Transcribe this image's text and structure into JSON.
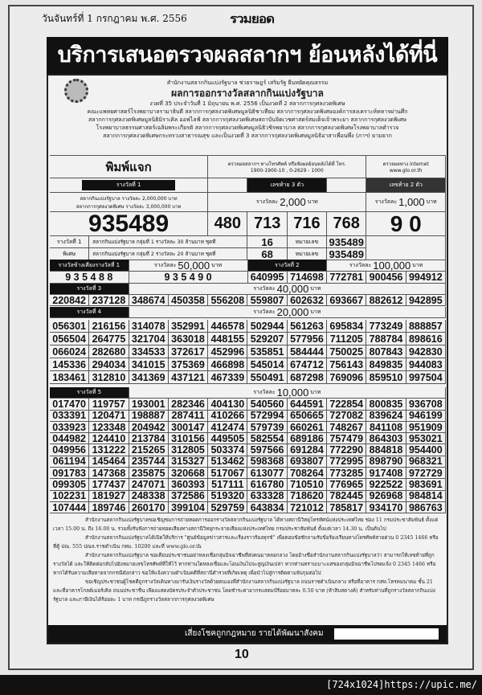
{
  "header": {
    "date": "วันจันทร์ที่ 1 กรกฎาคม พ.ศ. 2556",
    "logo": "รวมยอด",
    "banner": "บริการเสนอตรวจผลสลากฯ ย้อนหลังได้ที่นี่"
  },
  "intro": {
    "line1": "สำนักงานสลากกินแบ่งรัฐบาล ช่วยราษฎร์ เสริมรัฐ ยืนหยัดคุณธรรม",
    "title": "ผลการออกรางวัลสลากกินแบ่งรัฐบาล",
    "line3": "งวดที่ 35 ประจำวันที่ 1 มิถุนายน พ.ศ. 2556 เป็นงวดที่ 2 สลากการกุศลงวดพิเศษ",
    "line4": "คณะแพทยศาสตร์โรงพยาบาลรามาธิบดี สลากการกุศลงวดพิเศษมูลนิธิชาเทียม สลากการกุศลงวดพิเศษองค์การสงเคราะห์ทหารผ่านศึก",
    "line5": "สลากการกุศลงวดพิเศษมูลนิธิมิราเคิล ออฟไลฟ์ สลากการกุศลงวดพิเศษสถาบันจิตเวชศาสตร์สมเด็จเจ้าพระยา สลากการกุศลงวดพิเศษ",
    "line6": "โรงพยาบาลธรรมศาสตร์เฉลิมพระเกียรติ สลากการกุศลงวดพิเศษมูลนิธิวชิรพยาบาล สลากการกุศลงวดพิเศษโรงพยาบาลตำรวจ",
    "line7": "สลากการกุศลงวดพิเศษกระทรวงสาธารณสุข และเป็นงวดที่ 3 สลากการกุศลงวดพิเศษมูลนิธิอาสาเพื่อนพึ่ง (ภาฯ) ยามยาก"
  },
  "top": {
    "print_label": "พิมพ์แจก",
    "phone_label": "ตรวจผลสลากฯ ทางโทรศัพท์ หรือฟังผลย้อนหลังได้ที่ โทร.",
    "phone_numbers": "1900-1900-10 , 0-2629 - 1000",
    "internet_label": "ตรวจผลทาง internet",
    "internet_url": "www.glo.or.th"
  },
  "first_prize": {
    "label": "รางวัลที่ 1",
    "desc1": "สลากกินแบ่งรัฐบาล รางวัลละ 2,000,000 บาท",
    "desc2": "สลากการกุศลงวดพิเศษ รางวัลละ 3,000,000 บาท",
    "number": "935489"
  },
  "last3": {
    "label": "เลขท้าย 3 ตัว",
    "prefix": "รางวัลละ",
    "amount": "2,000",
    "unit": "บาท",
    "numbers": [
      "480",
      "713",
      "716",
      "768"
    ]
  },
  "last2": {
    "label": "เลขท้าย 2 ตัว",
    "prefix": "รางวัลละ",
    "amount": "1,000",
    "unit": "บาท",
    "number": "9 0"
  },
  "special": {
    "label1": "รางวัลที่ 1",
    "label2": "พิเศษ",
    "rows": [
      {
        "desc": "สลากกินแบ่งรัฐบาล กลุ่มที่ 1 รางวัลละ 30 ล้านบาท ชุดที่",
        "set": "16",
        "num_label": "หมายเลข",
        "number": "935489"
      },
      {
        "desc": "สลากกินแบ่งรัฐบาล กลุ่มที่ 2 รางวัลละ 20 ล้านบาท ชุดที่",
        "set": "68",
        "num_label": "หมายเลข",
        "number": "935489"
      }
    ]
  },
  "near_first": {
    "label": "รางวัลข้างเคียงรางวัลที่ 1",
    "prefix": "รางวัลละ",
    "amount": "50,000",
    "unit": "บาท",
    "numbers": [
      "9 3 5 4 8 8",
      "9 3 5 4 9 0"
    ]
  },
  "second": {
    "label": "รางวัลที่ 2",
    "prefix": "รางวัลละ",
    "amount": "100,000",
    "unit": "บาท",
    "numbers": [
      "640995",
      "714698",
      "772781",
      "900456",
      "994912"
    ]
  },
  "third": {
    "label": "รางวัลที่ 3",
    "prefix": "รางวัลละ",
    "amount": "40,000",
    "unit": "บาท",
    "rows": [
      [
        "220842",
        "237128",
        "348674",
        "450358",
        "556208",
        "559807",
        "602632",
        "693667",
        "882612",
        "942895"
      ]
    ]
  },
  "fourth": {
    "label": "รางวัลที่ 4",
    "prefix": "รางวัลละ",
    "amount": "20,000",
    "unit": "บาท",
    "rows": [
      [
        "056301",
        "216156",
        "314078",
        "352991",
        "446578",
        "502944",
        "561263",
        "695834",
        "773249",
        "888857"
      ],
      [
        "056504",
        "264775",
        "321704",
        "363018",
        "448155",
        "529207",
        "577956",
        "711205",
        "788784",
        "898616"
      ],
      [
        "066024",
        "282680",
        "334533",
        "372617",
        "452996",
        "535851",
        "584444",
        "750025",
        "807843",
        "942830"
      ],
      [
        "145336",
        "294034",
        "341015",
        "375369",
        "466898",
        "545014",
        "674712",
        "756143",
        "849835",
        "944083"
      ],
      [
        "183461",
        "312810",
        "341369",
        "437121",
        "467339",
        "550491",
        "687298",
        "769096",
        "859510",
        "997504"
      ]
    ]
  },
  "fifth": {
    "label": "รางวัลที่ 5",
    "prefix": "รางวัลละ",
    "amount": "10,000",
    "unit": "บาท",
    "rows": [
      [
        "017470",
        "119757",
        "193001",
        "282346",
        "404130",
        "540560",
        "644591",
        "722854",
        "800835",
        "936708"
      ],
      [
        "033391",
        "120471",
        "198887",
        "287411",
        "410266",
        "572994",
        "650665",
        "727082",
        "839624",
        "946199"
      ],
      [
        "033923",
        "123348",
        "204942",
        "300147",
        "412474",
        "579739",
        "660261",
        "748267",
        "841108",
        "951909"
      ],
      [
        "044982",
        "124410",
        "213784",
        "310156",
        "449505",
        "582554",
        "689186",
        "757479",
        "864303",
        "953021"
      ],
      [
        "049956",
        "131222",
        "215265",
        "312805",
        "503374",
        "597566",
        "691284",
        "772290",
        "884818",
        "954400"
      ],
      [
        "061194",
        "145464",
        "235744",
        "315327",
        "513462",
        "598368",
        "693807",
        "772995",
        "898790",
        "968321"
      ],
      [
        "091783",
        "147368",
        "235875",
        "320668",
        "517067",
        "613077",
        "708264",
        "773285",
        "917408",
        "972729"
      ],
      [
        "099305",
        "177437",
        "247071",
        "360393",
        "517111",
        "616780",
        "710510",
        "776965",
        "922522",
        "983691"
      ],
      [
        "102231",
        "181927",
        "248338",
        "372586",
        "519320",
        "633328",
        "718620",
        "782445",
        "926968",
        "984814"
      ],
      [
        "107444",
        "189746",
        "260170",
        "399104",
        "529759",
        "643834",
        "721012",
        "785817",
        "934170",
        "986763"
      ]
    ]
  },
  "notices": [
    "สำนักงานสลากกินแบ่งรัฐบาลขอเชิญชมการถ่ายทอดการออกรางวัลสลากกินแบ่งรัฐบาล ได้ทางสถานีวิทยุโทรทัศน์แห่งประเทศไทย ช่อง 11 กรมประชาสัมพันธ์ ตั้งแต่เวลา 15.00 น. ถึง 16.00 น. รวมทั้งรับฟังการถ่ายทอดเสียงทางสถานีวิทยุกระจายเสียงแห่งประเทศไทย กรมประชาสัมพันธ์ ตั้งแต่เวลา 14.30 น. เป็นต้นไป",
    "สำนักงานสลากกินแบ่งรัฐบาลได้เปิดให้บริการ \"ศูนย์ข้อมูลข่าวสารและเรื่องราวร้องทุกข์\" เพื่อตอบข้อซักถามรับข้อร้องเรียนทางโทรศัพท์สายด่วน 0 2345 1466 หรือ ที่ตู้ ปณ. 555 ปณจ.ราชดำเนิน กทม. 10200 และที่ www.glo.or.th",
    "สำนักงานสลากกินแบ่งรัฐบาล ขอเตือนประชาชนอย่าหลงเชื่อกลุ่มมิจฉาชีพที่ส่งคนมาหลอกลวง โดยอ้างชื่อสำนักงานสลากกินแบ่งรัฐบาลว่า สามารถให้เลขท้ายที่ถูกรางวัลได้ และให้ติดต่อกลับไปยังหมายเลขโทรศัพท์ที่ให้ไว้ หากท่านใดหลงเชื่อและโอนเงินไปจะสูญเงินเปล่า หากท่านทราบเบาะแสของกลุ่มมิจฉาชีพโปรดแจ้ง 0 2345 1466 หรือ หากได้รับความเสียหายจากกรณีดังกล่าว ขอให้แจ้งความดำเนินคดีที่สถานีตำรวจที่เกิดเหตุ เพื่อนำไปสู่การติดตามจับกุมต่อไป",
    "ขอเชิญประชาชนผู้โชคดีถูกรางวัลเดินทางมารับเงินรางวัลด้วยตนเองที่สำนักงานสลากกินแบ่งรัฐบาล ถนนราชดำเนินกลาง หรือที่อาคาร กสท.โทรคมนาคม ชั้น 21 และที่อาคารโกลด์เมอร์เคิล ถนนประชาชื่น เพียงแสดงบัตรประจำตัวประชาชน โดยชำระค่าอากรแสตมป์ร้อยบาทละ 0.50 บาท (ห้าสิบสตางค์) สำหรับท่านที่ถูกรางวัลสลากกินแบ่งรัฐบาล และภาษีเงินได้ร้อยละ 1 บาท กรณีถูกรางวัลสลากการกุศลงวดพิเศษ"
  ],
  "footer": {
    "slogan": "เสี่ยงโชคถูกกฎหมาย รายได้พัฒนาสังคม",
    "page_number": "10",
    "watermark": "[724x1024]https://upic.me/"
  }
}
